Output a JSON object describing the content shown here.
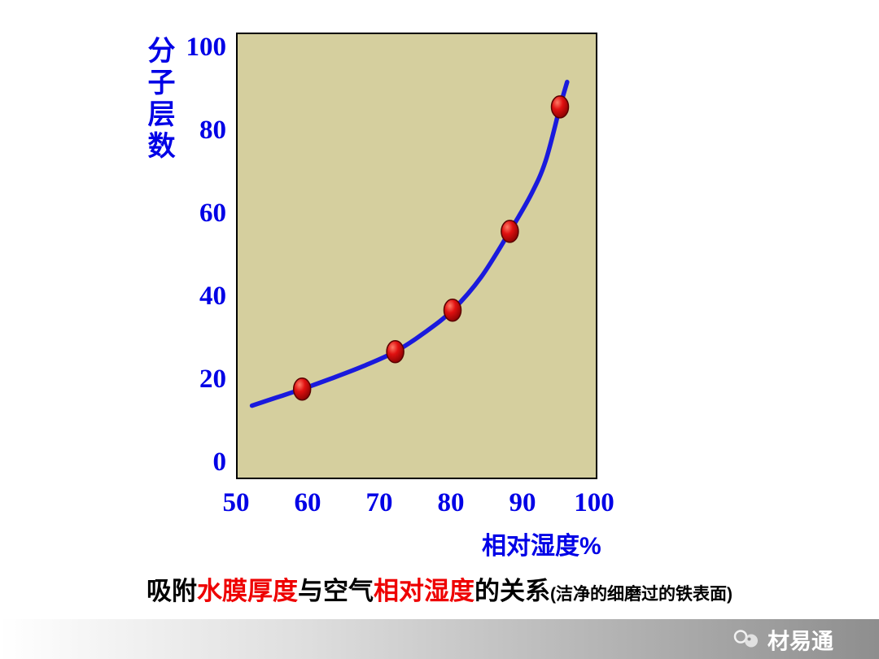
{
  "chart_data": {
    "type": "line",
    "title": "吸附水膜厚度与空气相对湿度的关系",
    "subtitle": "(洁净的细磨过的铁表面)",
    "xlabel": "相对湿度%",
    "ylabel": "分子层数",
    "xlim": [
      50,
      100
    ],
    "ylim": [
      0,
      100
    ],
    "x_ticks": [
      "50",
      "60",
      "70",
      "80",
      "90",
      "100"
    ],
    "y_ticks": [
      "100",
      "80",
      "60",
      "40",
      "20",
      "0"
    ],
    "points": [
      [
        59,
        18
      ],
      [
        72,
        27
      ],
      [
        80,
        37
      ],
      [
        88,
        56
      ],
      [
        95,
        86
      ]
    ],
    "curve": [
      [
        52,
        14
      ],
      [
        55.5,
        16
      ],
      [
        59,
        18
      ],
      [
        63,
        20.5
      ],
      [
        67.5,
        23.5
      ],
      [
        72,
        27
      ],
      [
        76,
        31.5
      ],
      [
        80,
        37
      ],
      [
        84,
        45
      ],
      [
        88,
        56
      ],
      [
        91,
        65
      ],
      [
        93,
        73
      ],
      [
        95,
        86
      ],
      [
        96,
        92
      ]
    ],
    "grid": false,
    "legend": "none",
    "line_color": "#1a1add",
    "marker_color": "#cc0000",
    "plot_bg": "#d5cf9e",
    "axis_text_color": "#0000e6"
  },
  "title": {
    "segments": [
      {
        "text": "吸附",
        "color": "#000000"
      },
      {
        "text": "水膜厚度",
        "color": "#ee0000"
      },
      {
        "text": "与空气",
        "color": "#000000"
      },
      {
        "text": "相对湿度",
        "color": "#ee0000"
      },
      {
        "text": "的关系",
        "color": "#000000"
      },
      {
        "text": "(洁净的细磨过的铁表面)",
        "color": "#000000"
      }
    ]
  },
  "watermark": {
    "text": "材易通"
  }
}
